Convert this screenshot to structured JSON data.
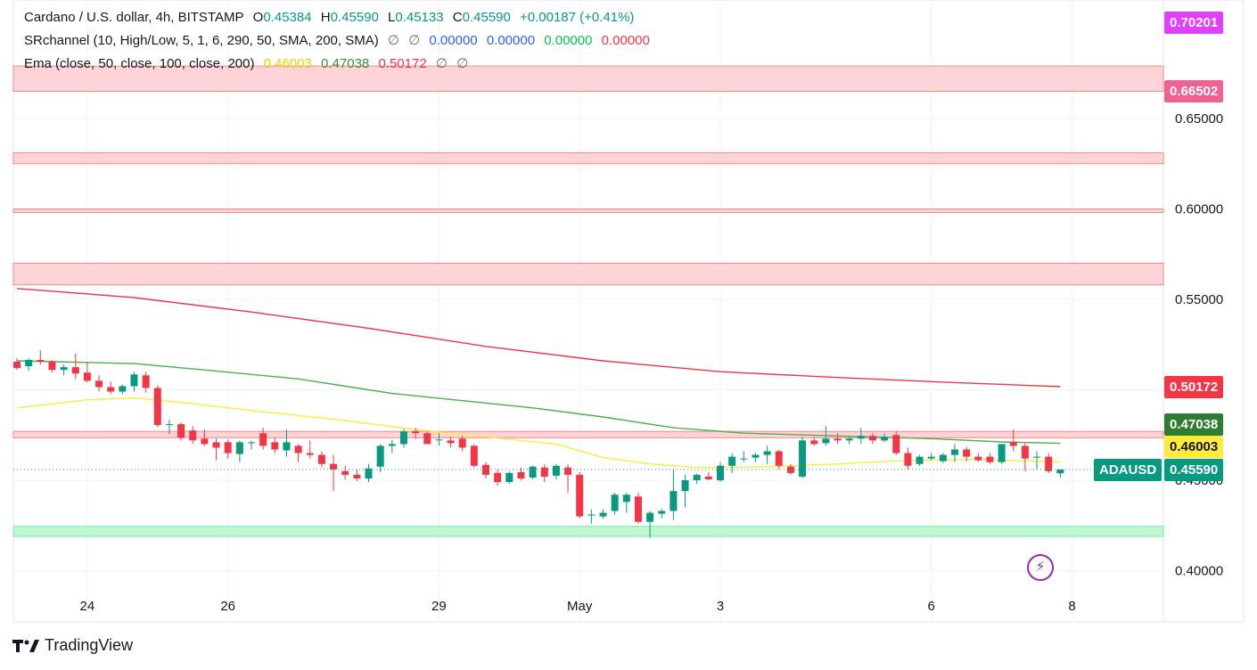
{
  "legend": {
    "symbol_title": "Cardano / U.S. dollar, 4h, BITSTAMP",
    "o_label": "O",
    "o_value": "0.45384",
    "h_label": "H",
    "h_value": "0.45590",
    "l_label": "L",
    "l_value": "0.45133",
    "c_label": "C",
    "c_value": "0.45590",
    "change": "+0.00187 (+0.41%)",
    "sr_title": "SRchannel (10, High/Low, 5, 1, 6, 290, 50, SMA, 200, SMA)",
    "sr_null1": "∅",
    "sr_null2": "∅",
    "sr_v1": "0.00000",
    "sr_v2": "0.00000",
    "sr_v3": "0.00000",
    "sr_v4": "0.00000",
    "ema_title": "Ema (close, 50, close, 100, close, 200)",
    "ema50": "0.46003",
    "ema100": "0.47038",
    "ema200": "0.50172",
    "ema_null1": "∅",
    "ema_null2": "∅"
  },
  "badges": {
    "top_magenta": "0.70201",
    "pink": "0.66502",
    "ema200": "0.50172",
    "ema100": "0.47038",
    "ema50": "0.46003",
    "symbol": "ADAUSD",
    "last": "0.45590"
  },
  "colors": {
    "up": "#089981",
    "down": "#f23645",
    "ema50": "#ffeb3b",
    "ema100": "#4caf50",
    "ema200": "#f23645",
    "resistance_zone": "#ffcdd2",
    "resistance_edge": "#f28b82",
    "support_zone": "#b9f6ca",
    "support_edge": "#69f0ae",
    "magenta": "#e040fb",
    "pink": "#f06292"
  },
  "branding": {
    "name": "TradingView"
  },
  "chart_data": {
    "type": "candlestick",
    "symbol": "ADAUSD",
    "interval": "4h",
    "ylim": [
      0.39,
      0.72
    ],
    "y_ticks": [
      "0.40000",
      "0.45000",
      "0.50000",
      "0.55000",
      "0.60000",
      "0.65000"
    ],
    "x_ticks": [
      {
        "label": "24",
        "bar": 6
      },
      {
        "label": "26",
        "bar": 18
      },
      {
        "label": "29",
        "bar": 36
      },
      {
        "label": "May",
        "bar": 48
      },
      {
        "label": "3",
        "bar": 60
      },
      {
        "label": "6",
        "bar": 78
      },
      {
        "label": "8",
        "bar": 90
      }
    ],
    "candles": [
      [
        0.5155,
        0.5175,
        0.511,
        0.512
      ],
      [
        0.513,
        0.5175,
        0.5105,
        0.5165
      ],
      [
        0.5165,
        0.522,
        0.514,
        0.5155
      ],
      [
        0.5155,
        0.5165,
        0.5095,
        0.511
      ],
      [
        0.511,
        0.514,
        0.508,
        0.5125
      ],
      [
        0.5125,
        0.52,
        0.506,
        0.509
      ],
      [
        0.5095,
        0.5155,
        0.504,
        0.505
      ],
      [
        0.505,
        0.508,
        0.499,
        0.5015
      ],
      [
        0.5015,
        0.5045,
        0.4975,
        0.499
      ],
      [
        0.499,
        0.503,
        0.4975,
        0.502
      ],
      [
        0.502,
        0.51,
        0.499,
        0.5085
      ],
      [
        0.508,
        0.51,
        0.4985,
        0.501
      ],
      [
        0.501,
        0.5025,
        0.4795,
        0.4805
      ],
      [
        0.4805,
        0.4835,
        0.4755,
        0.481
      ],
      [
        0.481,
        0.482,
        0.472,
        0.4735
      ],
      [
        0.4775,
        0.48,
        0.47,
        0.472
      ],
      [
        0.473,
        0.478,
        0.469,
        0.47
      ],
      [
        0.471,
        0.473,
        0.461,
        0.468
      ],
      [
        0.471,
        0.4725,
        0.462,
        0.465
      ],
      [
        0.4645,
        0.472,
        0.46,
        0.471
      ],
      [
        0.4705,
        0.472,
        0.467,
        0.471
      ],
      [
        0.476,
        0.479,
        0.467,
        0.469
      ],
      [
        0.471,
        0.4735,
        0.465,
        0.467
      ],
      [
        0.4665,
        0.478,
        0.463,
        0.471
      ],
      [
        0.469,
        0.47,
        0.46,
        0.465
      ],
      [
        0.465,
        0.472,
        0.462,
        0.464
      ],
      [
        0.464,
        0.466,
        0.457,
        0.459
      ],
      [
        0.459,
        0.464,
        0.444,
        0.456
      ],
      [
        0.455,
        0.458,
        0.4505,
        0.453
      ],
      [
        0.453,
        0.456,
        0.4495,
        0.451
      ],
      [
        0.451,
        0.459,
        0.449,
        0.4565
      ],
      [
        0.4575,
        0.47,
        0.4545,
        0.469
      ],
      [
        0.469,
        0.4725,
        0.465,
        0.47
      ],
      [
        0.47,
        0.4785,
        0.468,
        0.477
      ],
      [
        0.477,
        0.479,
        0.473,
        0.476
      ],
      [
        0.476,
        0.477,
        0.47,
        0.47
      ],
      [
        0.472,
        0.476,
        0.469,
        0.4725
      ],
      [
        0.472,
        0.474,
        0.468,
        0.4705
      ],
      [
        0.473,
        0.4745,
        0.466,
        0.468
      ],
      [
        0.469,
        0.47,
        0.457,
        0.458
      ],
      [
        0.4585,
        0.46,
        0.451,
        0.453
      ],
      [
        0.454,
        0.456,
        0.447,
        0.449
      ],
      [
        0.449,
        0.455,
        0.448,
        0.454
      ],
      [
        0.4545,
        0.457,
        0.45,
        0.451
      ],
      [
        0.4515,
        0.458,
        0.4505,
        0.4575
      ],
      [
        0.457,
        0.459,
        0.449,
        0.452
      ],
      [
        0.4525,
        0.459,
        0.4505,
        0.458
      ],
      [
        0.457,
        0.459,
        0.443,
        0.453
      ],
      [
        0.453,
        0.4545,
        0.429,
        0.43
      ],
      [
        0.4305,
        0.434,
        0.426,
        0.431
      ],
      [
        0.43,
        0.434,
        0.4285,
        0.432
      ],
      [
        0.433,
        0.443,
        0.431,
        0.442
      ],
      [
        0.438,
        0.443,
        0.432,
        0.442
      ],
      [
        0.441,
        0.443,
        0.426,
        0.427
      ],
      [
        0.427,
        0.433,
        0.418,
        0.432
      ],
      [
        0.4315,
        0.434,
        0.429,
        0.433
      ],
      [
        0.433,
        0.456,
        0.428,
        0.444
      ],
      [
        0.444,
        0.453,
        0.435,
        0.45
      ],
      [
        0.45,
        0.4535,
        0.448,
        0.453
      ],
      [
        0.452,
        0.4545,
        0.45,
        0.4505
      ],
      [
        0.45,
        0.46,
        0.449,
        0.458
      ],
      [
        0.458,
        0.465,
        0.454,
        0.463
      ],
      [
        0.462,
        0.466,
        0.46,
        0.462
      ],
      [
        0.4625,
        0.465,
        0.46,
        0.464
      ],
      [
        0.464,
        0.469,
        0.459,
        0.466
      ],
      [
        0.466,
        0.467,
        0.456,
        0.458
      ],
      [
        0.4575,
        0.459,
        0.453,
        0.454
      ],
      [
        0.452,
        0.474,
        0.451,
        0.472
      ],
      [
        0.472,
        0.474,
        0.469,
        0.47
      ],
      [
        0.4705,
        0.48,
        0.469,
        0.473
      ],
      [
        0.473,
        0.476,
        0.47,
        0.472
      ],
      [
        0.472,
        0.474,
        0.47,
        0.473
      ],
      [
        0.473,
        0.479,
        0.47,
        0.4745
      ],
      [
        0.4745,
        0.476,
        0.47,
        0.472
      ],
      [
        0.472,
        0.476,
        0.471,
        0.474
      ],
      [
        0.475,
        0.477,
        0.464,
        0.465
      ],
      [
        0.465,
        0.468,
        0.456,
        0.458
      ],
      [
        0.459,
        0.464,
        0.458,
        0.463
      ],
      [
        0.462,
        0.465,
        0.461,
        0.463
      ],
      [
        0.4605,
        0.465,
        0.4595,
        0.464
      ],
      [
        0.464,
        0.47,
        0.46,
        0.467
      ],
      [
        0.467,
        0.4685,
        0.4605,
        0.463
      ],
      [
        0.463,
        0.465,
        0.46,
        0.461
      ],
      [
        0.463,
        0.465,
        0.459,
        0.46
      ],
      [
        0.46,
        0.47,
        0.459,
        0.47
      ],
      [
        0.471,
        0.478,
        0.466,
        0.469
      ],
      [
        0.469,
        0.471,
        0.455,
        0.462
      ],
      [
        0.4625,
        0.466,
        0.456,
        0.463
      ],
      [
        0.463,
        0.465,
        0.454,
        0.455
      ],
      [
        0.45384,
        0.4559,
        0.45133,
        0.4559
      ]
    ],
    "ema_lines": [
      {
        "name": "EMA 50",
        "values": [
          [
            0,
            0.49
          ],
          [
            6,
            0.4945
          ],
          [
            10,
            0.4955
          ],
          [
            14,
            0.493
          ],
          [
            20,
            0.4885
          ],
          [
            28,
            0.483
          ],
          [
            34,
            0.478
          ],
          [
            40,
            0.474
          ],
          [
            46,
            0.47
          ],
          [
            50,
            0.4625
          ],
          [
            54,
            0.459
          ],
          [
            58,
            0.457
          ],
          [
            64,
            0.4575
          ],
          [
            70,
            0.459
          ],
          [
            76,
            0.461
          ],
          [
            82,
            0.4615
          ],
          [
            89,
            0.46
          ]
        ]
      },
      {
        "name": "EMA 100",
        "values": [
          [
            0,
            0.516
          ],
          [
            10,
            0.5145
          ],
          [
            16,
            0.511
          ],
          [
            24,
            0.506
          ],
          [
            32,
            0.498
          ],
          [
            38,
            0.494
          ],
          [
            44,
            0.49
          ],
          [
            50,
            0.485
          ],
          [
            56,
            0.479
          ],
          [
            62,
            0.476
          ],
          [
            70,
            0.4745
          ],
          [
            78,
            0.473
          ],
          [
            84,
            0.4712
          ],
          [
            89,
            0.4704
          ]
        ]
      },
      {
        "name": "EMA 200",
        "values": [
          [
            0,
            0.556
          ],
          [
            10,
            0.551
          ],
          [
            20,
            0.543
          ],
          [
            30,
            0.534
          ],
          [
            40,
            0.524
          ],
          [
            50,
            0.516
          ],
          [
            60,
            0.51
          ],
          [
            70,
            0.5068
          ],
          [
            80,
            0.504
          ],
          [
            89,
            0.5017
          ]
        ]
      }
    ],
    "resistance_zones": [
      [
        0.665,
        0.679
      ],
      [
        0.625,
        0.631
      ],
      [
        0.598,
        0.6
      ],
      [
        0.558,
        0.57
      ],
      [
        0.4735,
        0.477
      ]
    ],
    "support_zones": [
      [
        0.419,
        0.4245
      ]
    ],
    "last_price": 0.4559
  }
}
